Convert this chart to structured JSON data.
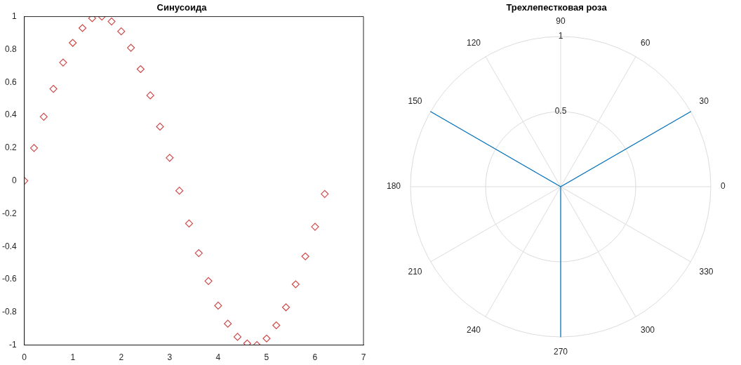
{
  "chart_data": [
    {
      "type": "scatter",
      "title": "Синусоида",
      "marker": "diamond",
      "grid": false,
      "x": [
        0,
        0.2,
        0.4,
        0.6,
        0.8,
        1,
        1.2,
        1.4,
        1.6,
        1.8,
        2,
        2.2,
        2.4,
        2.6,
        2.8,
        3,
        3.2,
        3.4,
        3.6,
        3.8,
        4,
        4.2,
        4.4,
        4.6,
        4.8,
        5,
        5.2,
        5.4,
        5.6,
        5.8,
        6,
        6.2
      ],
      "series": [
        {
          "color": "#d04a4a",
          "values": [
            0,
            0.2,
            0.39,
            0.56,
            0.72,
            0.84,
            0.93,
            0.99,
            1,
            0.97,
            0.91,
            0.81,
            0.68,
            0.52,
            0.33,
            0.14,
            -0.06,
            -0.26,
            -0.44,
            -0.61,
            -0.76,
            -0.87,
            -0.95,
            -0.99,
            -1,
            -0.96,
            -0.88,
            -0.77,
            -0.63,
            -0.46,
            -0.28,
            -0.08
          ]
        }
      ],
      "xlim": [
        0,
        7
      ],
      "xticks": [
        0,
        1,
        2,
        3,
        4,
        5,
        6,
        7
      ],
      "ylim": [
        -1,
        1
      ],
      "yticks": [
        -1,
        -0.8,
        -0.6,
        -0.4,
        -0.2,
        0,
        0.2,
        0.4,
        0.6,
        0.8,
        1
      ]
    },
    {
      "type": "radar",
      "title": "Трехлепестковая роза",
      "grid": true,
      "categories": [
        "90",
        "60",
        "30",
        "0",
        "330",
        "300",
        "270",
        "240",
        "210",
        "180",
        "150",
        "120"
      ],
      "ylim": [
        0,
        1
      ],
      "yticks": [
        0.5,
        1
      ],
      "series": [
        {
          "color": "#0072bd",
          "values": [
            0,
            0,
            1,
            0,
            0,
            0,
            1,
            0,
            0,
            0,
            1,
            0
          ]
        }
      ]
    }
  ]
}
